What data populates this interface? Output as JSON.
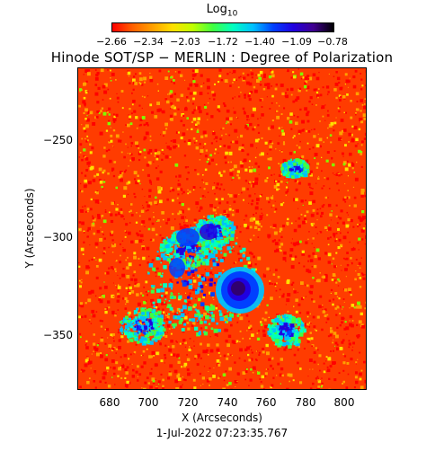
{
  "colorbar": {
    "title_main": "Log",
    "title_sub": "10",
    "ticks": [
      "−2.66",
      "−2.34",
      "−2.03",
      "−1.72",
      "−1.40",
      "−1.09",
      "−0.78"
    ],
    "colors": [
      "#ff0000",
      "#ff6000",
      "#ffa000",
      "#ffe000",
      "#c0ff00",
      "#40ff40",
      "#00ffc0",
      "#00c0ff",
      "#0040ff",
      "#2000e0",
      "#400090",
      "#000000"
    ]
  },
  "title": "Hinode SOT/SP − MERLIN : Degree of Polarization",
  "axes": {
    "x_label": "X (Arcseconds)",
    "y_label": "Y (Arcseconds)",
    "x_ticks": [
      "680",
      "700",
      "720",
      "740",
      "760",
      "780",
      "800"
    ],
    "y_ticks": [
      "−250",
      "−300",
      "−350"
    ]
  },
  "timestamp": "1-Jul-2022 07:23:35.767",
  "map": {
    "background_color": "#ff3c00",
    "speckle_colors": [
      "#ff0000",
      "#ffa000",
      "#ffe000",
      "#80ff00"
    ],
    "plage_colors": [
      "#40ff40",
      "#00ffc0",
      "#00c0ff",
      "#0040ff",
      "#2000e0"
    ],
    "umbra_color": "#300070"
  }
}
